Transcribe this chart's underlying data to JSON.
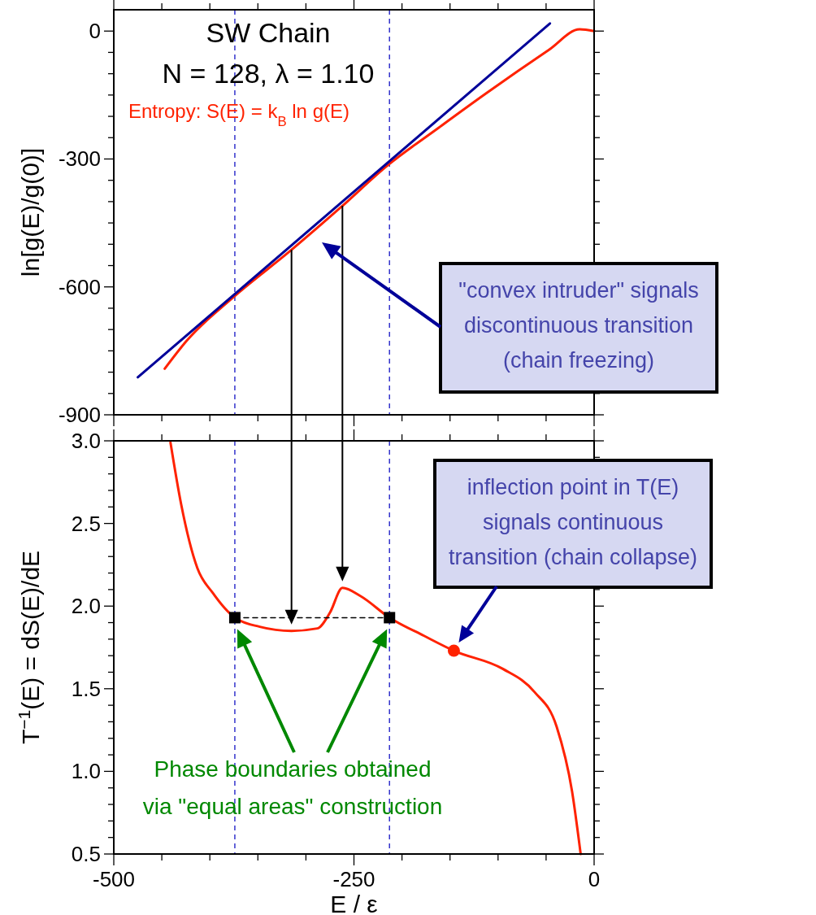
{
  "chart_data": [
    {
      "type": "line",
      "title": "SW Chain",
      "subtitle": "N = 128, λ = 1.10",
      "ylabel": "ln[g(E)/g(0)]",
      "tick_labels": "y",
      "xlim": [
        -500,
        0
      ],
      "ylim": [
        -900,
        50
      ],
      "xticks": [
        -500,
        {
          "value": -450,
          "label": null
        },
        {
          "value": -400,
          "label": null
        },
        {
          "value": -350,
          "label": null
        },
        {
          "value": -300,
          "label": null
        },
        -250,
        {
          "value": -200,
          "label": null
        },
        {
          "value": -150,
          "label": null
        },
        {
          "value": -100,
          "label": null
        },
        {
          "value": -50,
          "label": null
        },
        0
      ],
      "yticks": [
        -900,
        {
          "value": -850,
          "label": null
        },
        {
          "value": -800,
          "label": null
        },
        {
          "value": -750,
          "label": null
        },
        {
          "value": -700,
          "label": null
        },
        {
          "value": -650,
          "label": null
        },
        -600,
        {
          "value": -550,
          "label": null
        },
        {
          "value": -500,
          "label": null
        },
        {
          "value": -450,
          "label": null
        },
        {
          "value": -400,
          "label": null
        },
        {
          "value": -350,
          "label": null
        },
        -300,
        {
          "value": -250,
          "label": null
        },
        {
          "value": -200,
          "label": null
        },
        {
          "value": -150,
          "label": null
        },
        {
          "value": -100,
          "label": null
        },
        {
          "value": -50,
          "label": null
        },
        0
      ],
      "series": [
        {
          "color": "#ff2200",
          "x": [
            -447,
            -424,
            -375,
            -316,
            -264,
            -215,
            -162,
            -113,
            -47,
            -15,
            0
          ],
          "values": [
            -792,
            -726,
            -623,
            -515,
            -414,
            -315,
            -227,
            -147,
            -44,
            4,
            0
          ]
        },
        {
          "color": "#000099",
          "x": [
            -475,
            -46
          ],
          "values": [
            -812,
            18
          ]
        }
      ],
      "ref_lines": [
        {
          "axis": "x",
          "value": -374,
          "color": "#3333cc",
          "line_style": "dashed"
        },
        {
          "axis": "x",
          "value": -213,
          "color": "#3333cc",
          "line_style": "dashed"
        }
      ],
      "annotations": [
        "Entropy: S(E) = k$_{B}$ ln g(E)",
        "\"convex intruder\" signals\ndiscontinuous transition\n(chain freezing)"
      ]
    },
    {
      "type": "line",
      "xlabel": "E / ε",
      "ylabel": "T$^{−1}$(E) = dS(E)/dE",
      "xlim": [
        -500,
        0
      ],
      "ylim": [
        0.5,
        3.0
      ],
      "xticks": [
        -500,
        {
          "value": -450,
          "label": null
        },
        {
          "value": -400,
          "label": null
        },
        {
          "value": -350,
          "label": null
        },
        {
          "value": -300,
          "label": null
        },
        -250,
        {
          "value": -200,
          "label": null
        },
        {
          "value": -150,
          "label": null
        },
        {
          "value": -100,
          "label": null
        },
        {
          "value": -50,
          "label": null
        },
        0
      ],
      "yticks": [
        0.5,
        {
          "value": 0.6,
          "label": null
        },
        {
          "value": 0.7,
          "label": null
        },
        {
          "value": 0.8,
          "label": null
        },
        {
          "value": 0.9,
          "label": null
        },
        {
          "value": 1,
          "label": "1.0"
        },
        {
          "value": 1.1,
          "label": null
        },
        {
          "value": 1.2,
          "label": null
        },
        {
          "value": 1.3,
          "label": null
        },
        {
          "value": 1.4,
          "label": null
        },
        1.5,
        {
          "value": 1.6,
          "label": null
        },
        {
          "value": 1.7,
          "label": null
        },
        {
          "value": 1.8,
          "label": null
        },
        {
          "value": 1.9,
          "label": null
        },
        {
          "value": 2,
          "label": "2.0"
        },
        {
          "value": 2.1,
          "label": null
        },
        {
          "value": 2.2,
          "label": null
        },
        {
          "value": 2.3,
          "label": null
        },
        {
          "value": 2.4,
          "label": null
        },
        2.5,
        {
          "value": 2.6,
          "label": null
        },
        {
          "value": 2.7,
          "label": null
        },
        {
          "value": 2.8,
          "label": null
        },
        {
          "value": 2.9,
          "label": null
        },
        {
          "value": 3,
          "label": "3.0"
        }
      ],
      "series": [
        {
          "color": "#ff2200",
          "x": [
            -441,
            -430,
            -413,
            -397,
            -374,
            -348,
            -315,
            -288,
            -275,
            -262,
            -243,
            -213,
            -177,
            -146,
            -95,
            -62,
            -39,
            -23,
            -14
          ],
          "values": [
            2.99,
            2.62,
            2.23,
            2.08,
            1.93,
            1.875,
            1.85,
            1.865,
            1.96,
            2.11,
            2.06,
            1.93,
            1.82,
            1.73,
            1.62,
            1.48,
            1.27,
            0.88,
            0.5
          ]
        },
        {
          "color": "#000000",
          "line_style": "dashed",
          "x": [
            -374,
            -213
          ],
          "values": [
            1.93,
            1.93
          ]
        },
        {
          "type": "scatter",
          "color": "#000000",
          "marker": "square",
          "x": [
            -374,
            -213
          ],
          "values": [
            1.93,
            1.93
          ]
        },
        {
          "type": "scatter",
          "color": "#ff2200",
          "marker": "circle",
          "x": [
            -146
          ],
          "values": [
            1.73
          ]
        }
      ],
      "ref_lines": [
        {
          "axis": "x",
          "value": -374,
          "color": "#3333cc",
          "line_style": "dashed"
        },
        {
          "axis": "x",
          "value": -213,
          "color": "#3333cc",
          "line_style": "dashed"
        }
      ],
      "annotations": [
        "inflection point in T(E)\nsignals continuous\ntransition (chain collapse)",
        "Phase boundaries obtained\nvia \"equal areas\" construction"
      ]
    }
  ]
}
